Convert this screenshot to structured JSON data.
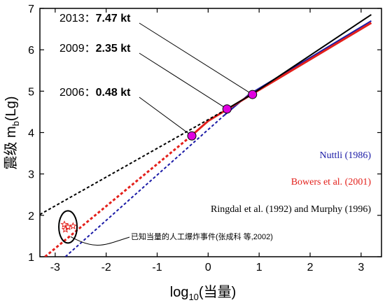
{
  "chart_data": {
    "type": "line",
    "xlabel": "log",
    "xlabel_sub": "10",
    "xlabel_tail": "(当量)",
    "ylabel": "震级 m",
    "ylabel_sub": "b",
    "ylabel_tail": "(Lg)",
    "xlim": [
      -3.3,
      3.4
    ],
    "ylim": [
      1,
      7
    ],
    "x_ticks": [
      -3,
      -2,
      -1,
      0,
      1,
      2,
      3
    ],
    "y_ticks": [
      1,
      2,
      3,
      4,
      5,
      6,
      7
    ],
    "grid": false,
    "series": [
      {
        "name": "Nuttli (1986)",
        "color": "#1a1aa6",
        "points": [
          [
            -2.8,
            1.0
          ],
          [
            0.3,
            4.4
          ],
          [
            0.8,
            4.92
          ],
          [
            3.2,
            6.7
          ]
        ],
        "dash_until_x": 0.3
      },
      {
        "name": "Bowers et al. (2001)",
        "color": "#e3201b",
        "points": [
          [
            -3.2,
            1.0
          ],
          [
            -0.35,
            3.9
          ],
          [
            0.0,
            4.28
          ],
          [
            0.85,
            4.92
          ],
          [
            3.2,
            6.65
          ]
        ],
        "dash_until_x": -0.35
      },
      {
        "name": "Ringdal et al. (1992) and Murphy (1996)",
        "color": "#000000",
        "points": [
          [
            -3.3,
            2.02
          ],
          [
            0.3,
            4.52
          ],
          [
            0.85,
            4.92
          ],
          [
            3.2,
            6.85
          ]
        ],
        "dash_until_x": 0.3
      }
    ],
    "events": [
      {
        "year": "2006",
        "sep": "：",
        "value": "0.48 kt",
        "x": -0.32,
        "y": 3.92
      },
      {
        "year": "2009",
        "sep": "：",
        "value": "2.35 kt",
        "x": 0.37,
        "y": 4.57
      },
      {
        "year": "2013",
        "sep": "：",
        "value": "7.47 kt",
        "x": 0.87,
        "y": 4.92
      }
    ],
    "known_events": {
      "note": "已知当量的人工爆炸事件(张成科 等,2002)",
      "stars": [
        [
          -2.82,
          1.78
        ],
        [
          -2.75,
          1.72
        ],
        [
          -2.65,
          1.74
        ],
        [
          -2.8,
          1.66
        ]
      ],
      "star_color": "#e3201b"
    },
    "event_marker_color": "#e000e0"
  }
}
